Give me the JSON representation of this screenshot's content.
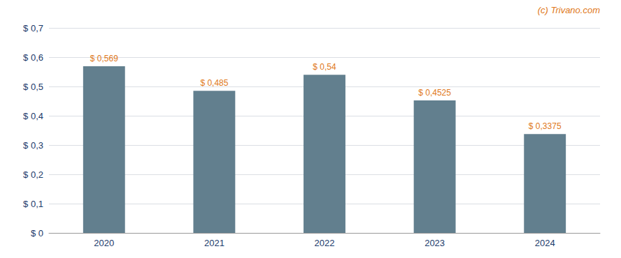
{
  "chart_data": {
    "type": "bar",
    "categories": [
      "2020",
      "2021",
      "2022",
      "2023",
      "2024"
    ],
    "values": [
      0.569,
      0.485,
      0.54,
      0.4525,
      0.3375
    ],
    "value_labels": [
      "$ 0,569",
      "$ 0,485",
      "$ 0,54",
      "$ 0,4525",
      "$ 0,3375"
    ],
    "color": "#627f8e",
    "ylim": [
      0,
      0.7
    ],
    "yticks": [
      {
        "value": 0,
        "label": "$ 0"
      },
      {
        "value": 0.1,
        "label": "$ 0,1"
      },
      {
        "value": 0.2,
        "label": "$ 0,2"
      },
      {
        "value": 0.3,
        "label": "$ 0,3"
      },
      {
        "value": 0.4,
        "label": "$ 0,4"
      },
      {
        "value": 0.5,
        "label": "$ 0,5"
      },
      {
        "value": 0.6,
        "label": "$ 0,6"
      },
      {
        "value": 0.7,
        "label": "$ 0,7"
      }
    ],
    "grid": true,
    "data_labels": true,
    "annotations": [
      "(c) Trivano.com"
    ]
  }
}
